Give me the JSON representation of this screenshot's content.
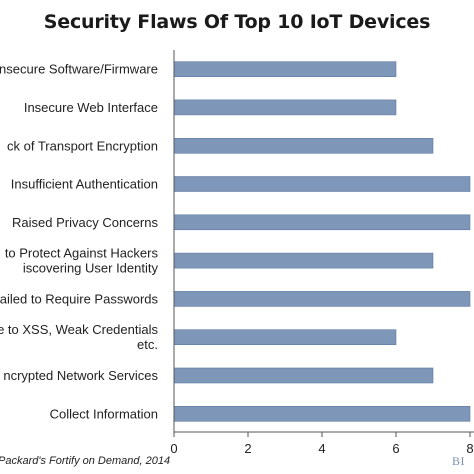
{
  "chart_data": {
    "type": "bar",
    "orientation": "horizontal",
    "title": "Security Flaws Of Top 10 IoT Devices",
    "categories": [
      [
        "nsecure Software/Firmware"
      ],
      [
        "Insecure Web Interface"
      ],
      [
        "ck of Transport Encryption"
      ],
      [
        "Insufficient Authentication"
      ],
      [
        "Raised Privacy Concerns"
      ],
      [
        "to Protect Against Hackers",
        "iscovering User Identity"
      ],
      [
        "ailed to Require Passwords"
      ],
      [
        "e to XSS, Weak Credentials",
        "etc."
      ],
      [
        "ncrypted Network Services"
      ],
      [
        "Collect Information"
      ]
    ],
    "values": [
      6,
      6,
      7,
      8,
      8,
      7,
      8,
      6,
      7,
      8
    ],
    "xlim": [
      0,
      8
    ],
    "xticks": [
      "0",
      "2",
      "4",
      "6",
      "8"
    ],
    "bar_color": "#7e97b8",
    "bar_edge_color": "#5f7aa0",
    "axis_color": "#555555",
    "grid": false,
    "source": "Packard's Fortify on Demand, 2014"
  },
  "logo_text": "BI"
}
